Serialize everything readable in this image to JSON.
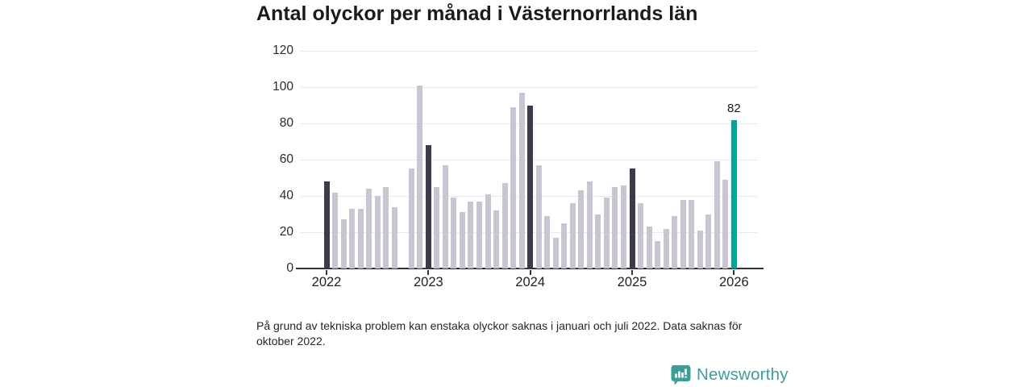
{
  "footnote": "På grund av tekniska problem kan enstaka olyckor saknas i januari och juli 2022. Data saknas för oktober 2022.",
  "logo": {
    "text": "Newsworthy",
    "color": "#3d9e96"
  },
  "chart_data": {
    "type": "bar",
    "title": "Antal olyckor per månad i Västernorrlands län",
    "ylim": [
      0,
      120
    ],
    "y_ticks": [
      0,
      20,
      40,
      60,
      80,
      100,
      120
    ],
    "x_tick_labels": [
      "2022",
      "2023",
      "2024",
      "2025",
      "2026"
    ],
    "grid": "horizontal",
    "series": [
      {
        "year": "2022",
        "values": [
          48,
          42,
          27,
          33,
          33,
          44,
          40,
          45,
          34,
          null,
          55,
          101
        ]
      },
      {
        "year": "2023",
        "values": [
          68,
          45,
          57,
          39,
          31,
          37,
          37,
          41,
          32,
          47,
          89,
          97
        ]
      },
      {
        "year": "2024",
        "values": [
          90,
          57,
          29,
          17,
          25,
          36,
          43,
          48,
          30,
          39,
          45,
          46
        ]
      },
      {
        "year": "2025",
        "values": [
          55,
          36,
          23,
          15,
          22,
          29,
          38,
          38,
          21,
          30,
          59,
          49
        ]
      },
      {
        "year": "2026",
        "values": [
          82
        ]
      }
    ],
    "missing_months": [
      "2022-10"
    ],
    "annotation": {
      "text": "82",
      "year": "2026",
      "month_index": 0
    },
    "colors": {
      "default_bar": "#c8c6d2",
      "january_bar": "#3b3b4c",
      "highlight_bar": "#00a69b",
      "highlight_year": "2026"
    }
  }
}
